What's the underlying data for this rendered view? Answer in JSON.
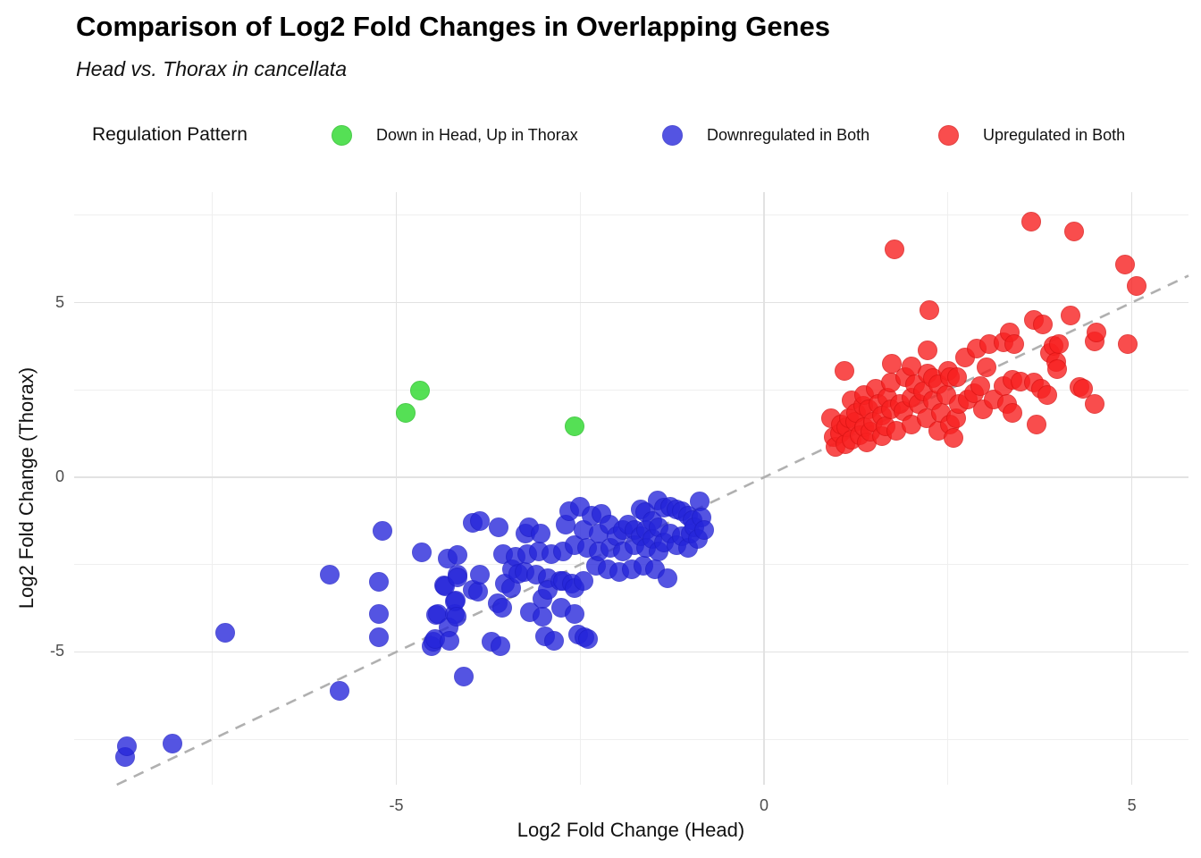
{
  "header": {
    "title": "Comparison of Log2 Fold Changes in Overlapping Genes",
    "subtitle": "Head vs. Thorax in cancellata"
  },
  "legend": {
    "title": "Regulation Pattern",
    "position": "top"
  },
  "chart_data": {
    "type": "scatter",
    "title": "Comparison of Log2 Fold Changes in Overlapping Genes",
    "subtitle": "Head vs. Thorax in cancellata",
    "xlabel": "Log2 Fold Change (Head)",
    "ylabel": "Log2 Fold Change (Thorax)",
    "xlim": [
      -9.38,
      5.77
    ],
    "ylim": [
      -8.8,
      8.16
    ],
    "grid": "on",
    "x_ticks": {
      "values": [
        -5,
        0,
        5
      ],
      "labels": [
        "-5",
        "0",
        "5"
      ]
    },
    "y_ticks": {
      "values": [
        -5,
        0,
        5
      ],
      "labels": [
        "-5",
        "0",
        "5"
      ]
    },
    "x_minor_ticks": [
      -7.5,
      -2.5,
      2.5
    ],
    "y_minor_ticks": [
      -7.5,
      -2.5,
      2.5,
      7.5
    ],
    "reference_line": {
      "type": "identity",
      "slope": 1,
      "intercept": 0,
      "style": "dashed",
      "color": "#b0b0b0"
    },
    "point_radius": 11,
    "series": [
      {
        "name": "Down in Head, Up in Thorax",
        "color": "#2BD92B",
        "stroke": "#1FBE1F",
        "opacity": 0.8,
        "points": [
          [
            -4.87,
            1.84
          ],
          [
            -4.68,
            2.48
          ],
          [
            -2.58,
            1.46
          ]
        ]
      },
      {
        "name": "Downregulated in Both",
        "color": "#2525DA",
        "stroke": "#1E1EC8",
        "opacity": 0.78,
        "points": [
          [
            -8.69,
            -8.01
          ],
          [
            -8.66,
            -7.7
          ],
          [
            -8.04,
            -7.62
          ],
          [
            -7.33,
            -4.45
          ],
          [
            -5.9,
            -2.79
          ],
          [
            -5.77,
            -6.11
          ],
          [
            -5.24,
            -2.99
          ],
          [
            -5.24,
            -3.91
          ],
          [
            -5.24,
            -4.58
          ],
          [
            -5.19,
            -1.53
          ],
          [
            -4.66,
            -2.15
          ],
          [
            -4.52,
            -4.83
          ],
          [
            -4.5,
            -4.71
          ],
          [
            -4.47,
            -4.63
          ],
          [
            -4.46,
            -3.94
          ],
          [
            -4.43,
            -3.91
          ],
          [
            -4.35,
            -3.09
          ],
          [
            -4.34,
            -3.12
          ],
          [
            -4.3,
            -2.33
          ],
          [
            -4.29,
            -4.3
          ],
          [
            -4.28,
            -4.68
          ],
          [
            -4.21,
            -3.91
          ],
          [
            -4.2,
            -3.56
          ],
          [
            -4.19,
            -3.53
          ],
          [
            -4.18,
            -3.99
          ],
          [
            -4.17,
            -2.22
          ],
          [
            -4.17,
            -2.79
          ],
          [
            -4.17,
            -2.86
          ],
          [
            -4.08,
            -5.71
          ],
          [
            -3.96,
            -1.3
          ],
          [
            -3.96,
            -3.22
          ],
          [
            -3.89,
            -3.27
          ],
          [
            -3.86,
            -1.25
          ],
          [
            -3.86,
            -2.79
          ],
          [
            -3.71,
            -4.71
          ],
          [
            -3.62,
            -3.61
          ],
          [
            -3.61,
            -1.43
          ],
          [
            -3.58,
            -4.83
          ],
          [
            -3.56,
            -3.73
          ],
          [
            -3.55,
            -2.2
          ],
          [
            -3.52,
            -3.04
          ],
          [
            -3.44,
            -3.17
          ],
          [
            -3.43,
            -2.63
          ],
          [
            -3.38,
            -2.28
          ],
          [
            -3.34,
            -2.76
          ],
          [
            -3.26,
            -2.71
          ],
          [
            -3.24,
            -1.61
          ],
          [
            -3.22,
            -2.2
          ],
          [
            -3.2,
            -1.43
          ],
          [
            -3.18,
            -3.86
          ],
          [
            -3.1,
            -2.79
          ],
          [
            -3.06,
            -2.12
          ],
          [
            -3.04,
            -1.61
          ],
          [
            -3.01,
            -3.48
          ],
          [
            -3.01,
            -3.99
          ],
          [
            -2.98,
            -4.55
          ],
          [
            -2.94,
            -2.89
          ],
          [
            -2.94,
            -3.22
          ],
          [
            -2.89,
            -2.2
          ],
          [
            -2.86,
            -4.68
          ],
          [
            -2.77,
            -2.97
          ],
          [
            -2.76,
            -3.73
          ],
          [
            -2.73,
            -2.12
          ],
          [
            -2.73,
            -2.97
          ],
          [
            -2.7,
            -1.36
          ],
          [
            -2.65,
            -0.97
          ],
          [
            -2.61,
            -3.04
          ],
          [
            -2.58,
            -1.94
          ],
          [
            -2.58,
            -3.17
          ],
          [
            -2.58,
            -3.91
          ],
          [
            -2.53,
            -4.5
          ],
          [
            -2.5,
            -0.84
          ],
          [
            -2.45,
            -1.51
          ],
          [
            -2.45,
            -2.97
          ],
          [
            -2.44,
            -4.58
          ],
          [
            -2.41,
            -2.02
          ],
          [
            -2.39,
            -4.63
          ],
          [
            -2.35,
            -1.1
          ],
          [
            -2.28,
            -2.53
          ],
          [
            -2.25,
            -1.61
          ],
          [
            -2.25,
            -2.12
          ],
          [
            -2.21,
            -1.05
          ],
          [
            -2.13,
            -2.63
          ],
          [
            -2.1,
            -1.36
          ],
          [
            -2.09,
            -2.02
          ],
          [
            -2.0,
            -1.69
          ],
          [
            -1.97,
            -2.71
          ],
          [
            -1.92,
            -1.51
          ],
          [
            -1.92,
            -2.12
          ],
          [
            -1.85,
            -1.36
          ],
          [
            -1.8,
            -2.63
          ],
          [
            -1.76,
            -1.51
          ],
          [
            -1.76,
            -1.94
          ],
          [
            -1.68,
            -0.92
          ],
          [
            -1.68,
            -1.69
          ],
          [
            -1.64,
            -2.53
          ],
          [
            -1.62,
            -1.0
          ],
          [
            -1.6,
            -1.51
          ],
          [
            -1.6,
            -2.02
          ],
          [
            -1.52,
            -1.25
          ],
          [
            -1.52,
            -1.77
          ],
          [
            -1.48,
            -2.63
          ],
          [
            -1.45,
            -0.66
          ],
          [
            -1.43,
            -1.43
          ],
          [
            -1.43,
            -2.12
          ],
          [
            -1.36,
            -0.87
          ],
          [
            -1.36,
            -1.87
          ],
          [
            -1.31,
            -2.89
          ],
          [
            -1.28,
            -0.84
          ],
          [
            -1.28,
            -1.61
          ],
          [
            -1.19,
            -0.92
          ],
          [
            -1.19,
            -1.94
          ],
          [
            -1.12,
            -0.97
          ],
          [
            -1.12,
            -1.69
          ],
          [
            -1.03,
            -1.1
          ],
          [
            -1.03,
            -2.02
          ],
          [
            -1.0,
            -1.61
          ],
          [
            -0.97,
            -1.23
          ],
          [
            -0.95,
            -1.43
          ],
          [
            -0.9,
            -1.77
          ],
          [
            -0.88,
            -0.69
          ],
          [
            -0.85,
            -1.15
          ],
          [
            -0.82,
            -1.51
          ]
        ]
      },
      {
        "name": "Upregulated in Both",
        "color": "#F82121",
        "stroke": "#DC1414",
        "opacity": 0.8,
        "points": [
          [
            0.91,
            1.69
          ],
          [
            0.95,
            1.15
          ],
          [
            0.97,
            0.87
          ],
          [
            1.03,
            1.25
          ],
          [
            1.05,
            1.5
          ],
          [
            1.09,
            3.04
          ],
          [
            1.1,
            0.95
          ],
          [
            1.12,
            1.43
          ],
          [
            1.15,
            1.7
          ],
          [
            1.19,
            1.07
          ],
          [
            1.19,
            2.2
          ],
          [
            1.24,
            1.59
          ],
          [
            1.25,
            1.85
          ],
          [
            1.3,
            1.2
          ],
          [
            1.35,
            2.05
          ],
          [
            1.36,
            1.43
          ],
          [
            1.36,
            2.35
          ],
          [
            1.4,
            1.0
          ],
          [
            1.42,
            1.95
          ],
          [
            1.45,
            1.3
          ],
          [
            1.48,
            1.59
          ],
          [
            1.52,
            2.53
          ],
          [
            1.55,
            2.1
          ],
          [
            1.6,
            1.18
          ],
          [
            1.6,
            1.76
          ],
          [
            1.65,
            1.45
          ],
          [
            1.68,
            2.28
          ],
          [
            1.73,
            1.94
          ],
          [
            1.73,
            2.71
          ],
          [
            1.74,
            3.25
          ],
          [
            1.77,
            6.52
          ],
          [
            1.8,
            1.33
          ],
          [
            1.85,
            2.1
          ],
          [
            1.9,
            1.9
          ],
          [
            1.92,
            2.87
          ],
          [
            2.0,
            1.51
          ],
          [
            2.0,
            2.28
          ],
          [
            2.0,
            3.17
          ],
          [
            2.05,
            2.65
          ],
          [
            2.1,
            2.1
          ],
          [
            2.16,
            2.46
          ],
          [
            2.21,
            1.69
          ],
          [
            2.22,
            2.97
          ],
          [
            2.22,
            3.63
          ],
          [
            2.25,
            4.78
          ],
          [
            2.3,
            2.2
          ],
          [
            2.3,
            2.85
          ],
          [
            2.37,
            1.33
          ],
          [
            2.37,
            2.66
          ],
          [
            2.41,
            1.84
          ],
          [
            2.48,
            2.35
          ],
          [
            2.5,
            3.05
          ],
          [
            2.53,
            1.51
          ],
          [
            2.53,
            2.87
          ],
          [
            2.58,
            1.13
          ],
          [
            2.61,
            1.69
          ],
          [
            2.62,
            2.86
          ],
          [
            2.65,
            2.1
          ],
          [
            2.73,
            3.43
          ],
          [
            2.77,
            2.23
          ],
          [
            2.85,
            2.4
          ],
          [
            2.89,
            3.68
          ],
          [
            2.94,
            2.61
          ],
          [
            2.98,
            1.94
          ],
          [
            3.02,
            3.15
          ],
          [
            3.06,
            3.81
          ],
          [
            3.12,
            2.23
          ],
          [
            3.26,
            2.61
          ],
          [
            3.26,
            3.86
          ],
          [
            3.3,
            2.1
          ],
          [
            3.34,
            4.14
          ],
          [
            3.38,
            1.84
          ],
          [
            3.38,
            2.79
          ],
          [
            3.4,
            3.81
          ],
          [
            3.49,
            2.74
          ],
          [
            3.63,
            7.31
          ],
          [
            3.67,
            2.71
          ],
          [
            3.67,
            4.5
          ],
          [
            3.71,
            1.51
          ],
          [
            3.77,
            2.53
          ],
          [
            3.79,
            4.37
          ],
          [
            3.85,
            2.35
          ],
          [
            3.89,
            3.56
          ],
          [
            3.93,
            3.76
          ],
          [
            3.97,
            3.3
          ],
          [
            3.99,
            3.09
          ],
          [
            4.01,
            3.81
          ],
          [
            4.17,
            4.63
          ],
          [
            4.22,
            7.03
          ],
          [
            4.29,
            2.58
          ],
          [
            4.34,
            2.53
          ],
          [
            4.5,
            2.1
          ],
          [
            4.5,
            3.89
          ],
          [
            4.52,
            4.14
          ],
          [
            4.91,
            6.09
          ],
          [
            4.94,
            3.81
          ],
          [
            5.07,
            5.47
          ]
        ]
      }
    ]
  }
}
